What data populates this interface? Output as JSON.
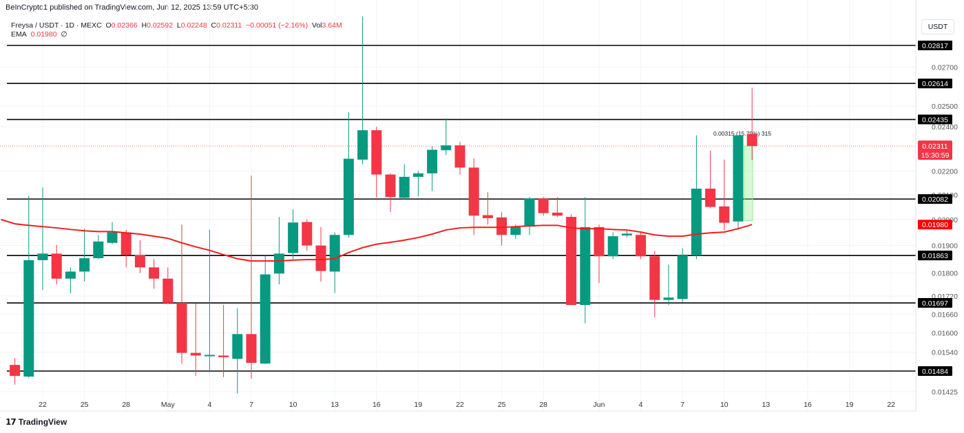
{
  "header": {
    "published": "BeInCrypto1 published on TradingView.com, Jun 12, 2025 13:59 UTC+5:30",
    "symbol": "Freysa / USDT · 1D · MEXC",
    "o_label": "O",
    "o": "0.02366",
    "h_label": "H",
    "h": "0.02592",
    "l_label": "L",
    "l": "0.02248",
    "c_label": "C",
    "c": "0.02311",
    "change": "−0.00051 (−2.16%)",
    "vol_label": "Vol",
    "vol": "3.64M",
    "ema_label": "EMA",
    "ema": "0.01980",
    "ema_extra": "∅"
  },
  "axis_unit": "USDT",
  "footer": {
    "brand": "TradingView",
    "logo_icon": "tradingview-logo-icon"
  },
  "colors": {
    "up": "#089981",
    "down": "#f23645",
    "ema": "#f21c1c",
    "level": "#000000",
    "measure": "#90ee90"
  },
  "chart_data": {
    "type": "candlestick",
    "scale": "log",
    "grid": true,
    "ylim": [
      0.0139,
      0.03
    ],
    "x_ticks": [
      {
        "date": "2025-04-22",
        "label": "22"
      },
      {
        "date": "2025-04-25",
        "label": "25"
      },
      {
        "date": "2025-04-28",
        "label": "28"
      },
      {
        "date": "2025-05-01",
        "label": "May"
      },
      {
        "date": "2025-05-04",
        "label": "4"
      },
      {
        "date": "2025-05-07",
        "label": "7"
      },
      {
        "date": "2025-05-10",
        "label": "10"
      },
      {
        "date": "2025-05-13",
        "label": "13"
      },
      {
        "date": "2025-05-16",
        "label": "16"
      },
      {
        "date": "2025-05-19",
        "label": "19"
      },
      {
        "date": "2025-05-22",
        "label": "22"
      },
      {
        "date": "2025-05-25",
        "label": "25"
      },
      {
        "date": "2025-05-28",
        "label": "28"
      },
      {
        "date": "2025-06-01",
        "label": "Jun"
      },
      {
        "date": "2025-06-04",
        "label": "4"
      },
      {
        "date": "2025-06-07",
        "label": "7"
      },
      {
        "date": "2025-06-10",
        "label": "10"
      },
      {
        "date": "2025-06-13",
        "label": "13"
      },
      {
        "date": "2025-06-16",
        "label": "16"
      },
      {
        "date": "2025-06-19",
        "label": "19"
      },
      {
        "date": "2025-06-22",
        "label": "22"
      }
    ],
    "y_ticks": [
      "0.02700",
      "0.02500",
      "0.02400",
      "0.02200",
      "0.02100",
      "0.02000",
      "0.01900",
      "0.01800",
      "0.01720",
      "0.01660",
      "0.01600",
      "0.01540",
      "0.01425"
    ],
    "levels": [
      "0.02817",
      "0.02614",
      "0.02435",
      "0.02082",
      "0.01863",
      "0.01697",
      "0.01484"
    ],
    "last_price": {
      "value": "0.02311",
      "countdown": "15:30:59"
    },
    "ema_last": "0.01980",
    "measure": {
      "from": 0.01996,
      "to": 0.02311,
      "label": "0.00315 (15.79%) 315",
      "date": "2025-06-11"
    },
    "candles": [
      [
        "2025-04-20",
        0.01502,
        0.01522,
        0.01445,
        0.0147
      ],
      [
        "2025-04-21",
        0.01468,
        0.02095,
        0.01465,
        0.01846
      ],
      [
        "2025-04-22",
        0.01846,
        0.0213,
        0.0174,
        0.0187
      ],
      [
        "2025-04-23",
        0.0187,
        0.01902,
        0.0176,
        0.0178
      ],
      [
        "2025-04-24",
        0.0178,
        0.0182,
        0.0173,
        0.01805
      ],
      [
        "2025-04-25",
        0.01805,
        0.01965,
        0.0177,
        0.01853
      ],
      [
        "2025-04-26",
        0.01853,
        0.0194,
        0.0185,
        0.01915
      ],
      [
        "2025-04-27",
        0.0191,
        0.0199,
        0.01905,
        0.0195
      ],
      [
        "2025-04-28",
        0.0195,
        0.0196,
        0.0182,
        0.01865
      ],
      [
        "2025-04-29",
        0.01865,
        0.0192,
        0.018,
        0.0182
      ],
      [
        "2025-04-30",
        0.0182,
        0.0185,
        0.01745,
        0.0178
      ],
      [
        "2025-05-01",
        0.0178,
        0.0182,
        0.01695,
        0.01697
      ],
      [
        "2025-05-02",
        0.01697,
        0.0198,
        0.01505,
        0.01538
      ],
      [
        "2025-05-03",
        0.01538,
        0.01695,
        0.0147,
        0.0153
      ],
      [
        "2025-05-04",
        0.01528,
        0.0196,
        0.0148,
        0.01532
      ],
      [
        "2025-05-05",
        0.0153,
        0.0169,
        0.01466,
        0.01525
      ],
      [
        "2025-05-06",
        0.0152,
        0.0168,
        0.0142,
        0.01596
      ],
      [
        "2025-05-07",
        0.01596,
        0.0218,
        0.01462,
        0.01508
      ],
      [
        "2025-05-08",
        0.01506,
        0.01862,
        0.01504,
        0.01795
      ],
      [
        "2025-05-09",
        0.01798,
        0.0201,
        0.0176,
        0.0187
      ],
      [
        "2025-05-10",
        0.01872,
        0.0204,
        0.0185,
        0.01988
      ],
      [
        "2025-05-11",
        0.0199,
        0.02,
        0.0188,
        0.019
      ],
      [
        "2025-05-12",
        0.019,
        0.0197,
        0.0177,
        0.01807
      ],
      [
        "2025-05-13",
        0.01805,
        0.0195,
        0.0173,
        0.0194
      ],
      [
        "2025-05-14",
        0.0194,
        0.0247,
        0.0193,
        0.02254
      ],
      [
        "2025-05-15",
        0.0225,
        0.02982,
        0.0223,
        0.02384
      ],
      [
        "2025-05-16",
        0.02384,
        0.024,
        0.02088,
        0.02185
      ],
      [
        "2025-05-17",
        0.02185,
        0.0219,
        0.0203,
        0.0209
      ],
      [
        "2025-05-18",
        0.02087,
        0.0223,
        0.0208,
        0.02175
      ],
      [
        "2025-05-19",
        0.02175,
        0.022,
        0.02093,
        0.0219
      ],
      [
        "2025-05-20",
        0.0219,
        0.0231,
        0.02115,
        0.02294
      ],
      [
        "2025-05-21",
        0.02292,
        0.0244,
        0.0227,
        0.02314
      ],
      [
        "2025-05-22",
        0.02314,
        0.0233,
        0.02185,
        0.02215
      ],
      [
        "2025-05-23",
        0.02215,
        0.02255,
        0.0194,
        0.02015
      ],
      [
        "2025-05-24",
        0.02017,
        0.0211,
        0.0198,
        0.02005
      ],
      [
        "2025-05-25",
        0.02008,
        0.0203,
        0.019,
        0.0194
      ],
      [
        "2025-05-26",
        0.0194,
        0.0198,
        0.01925,
        0.0197
      ],
      [
        "2025-05-27",
        0.01972,
        0.0209,
        0.0194,
        0.02085
      ],
      [
        "2025-05-28",
        0.02085,
        0.0209,
        0.02015,
        0.02025
      ],
      [
        "2025-05-29",
        0.02027,
        0.0209,
        0.0201,
        0.02015
      ],
      [
        "2025-05-30",
        0.0201,
        0.0202,
        0.0169,
        0.0169
      ],
      [
        "2025-05-31",
        0.0169,
        0.0209,
        0.0163,
        0.0197
      ],
      [
        "2025-06-01",
        0.0197,
        0.0198,
        0.01765,
        0.0186
      ],
      [
        "2025-06-02",
        0.0186,
        0.0195,
        0.0185,
        0.01935
      ],
      [
        "2025-06-03",
        0.01938,
        0.0196,
        0.0193,
        0.01945
      ],
      [
        "2025-06-04",
        0.0194,
        0.0195,
        0.0185,
        0.0186
      ],
      [
        "2025-06-05",
        0.0186,
        0.0188,
        0.0165,
        0.01707
      ],
      [
        "2025-06-06",
        0.01707,
        0.0183,
        0.0169,
        0.01715
      ],
      [
        "2025-06-07",
        0.0171,
        0.0189,
        0.017,
        0.01863
      ],
      [
        "2025-06-08",
        0.01863,
        0.0236,
        0.0185,
        0.02125
      ],
      [
        "2025-06-09",
        0.02125,
        0.0229,
        0.02045,
        0.0205
      ],
      [
        "2025-06-10",
        0.02052,
        0.0225,
        0.01957,
        0.01987
      ],
      [
        "2025-06-11",
        0.01992,
        0.0236,
        0.0196,
        0.0236
      ],
      [
        "2025-06-12",
        0.02366,
        0.02592,
        0.02248,
        0.02311
      ]
    ],
    "ema": [
      [
        "2025-04-19",
        0.02
      ],
      [
        "2025-04-20",
        0.01983
      ],
      [
        "2025-04-21",
        0.01977
      ],
      [
        "2025-04-22",
        0.01972
      ],
      [
        "2025-04-23",
        0.01967
      ],
      [
        "2025-04-24",
        0.01961
      ],
      [
        "2025-04-25",
        0.01956
      ],
      [
        "2025-04-26",
        0.01953
      ],
      [
        "2025-04-27",
        0.01953
      ],
      [
        "2025-04-28",
        0.01948
      ],
      [
        "2025-04-29",
        0.01943
      ],
      [
        "2025-04-30",
        0.01935
      ],
      [
        "2025-05-01",
        0.01927
      ],
      [
        "2025-05-02",
        0.0191
      ],
      [
        "2025-05-03",
        0.01895
      ],
      [
        "2025-05-04",
        0.01882
      ],
      [
        "2025-05-05",
        0.01866
      ],
      [
        "2025-05-06",
        0.01851
      ],
      [
        "2025-05-07",
        0.01843
      ],
      [
        "2025-05-08",
        0.01843
      ],
      [
        "2025-05-09",
        0.01843
      ],
      [
        "2025-05-10",
        0.01846
      ],
      [
        "2025-05-11",
        0.01848
      ],
      [
        "2025-05-12",
        0.01848
      ],
      [
        "2025-05-13",
        0.01851
      ],
      [
        "2025-05-14",
        0.01874
      ],
      [
        "2025-05-15",
        0.01892
      ],
      [
        "2025-05-16",
        0.01905
      ],
      [
        "2025-05-17",
        0.01912
      ],
      [
        "2025-05-18",
        0.0192
      ],
      [
        "2025-05-19",
        0.0193
      ],
      [
        "2025-05-20",
        0.01943
      ],
      [
        "2025-05-21",
        0.01959
      ],
      [
        "2025-05-22",
        0.01967
      ],
      [
        "2025-05-23",
        0.01969
      ],
      [
        "2025-05-24",
        0.01969
      ],
      [
        "2025-05-25",
        0.01969
      ],
      [
        "2025-05-26",
        0.01972
      ],
      [
        "2025-05-27",
        0.01975
      ],
      [
        "2025-05-28",
        0.01977
      ],
      [
        "2025-05-29",
        0.01977
      ],
      [
        "2025-05-30",
        0.01967
      ],
      [
        "2025-05-31",
        0.01964
      ],
      [
        "2025-06-01",
        0.01964
      ],
      [
        "2025-06-02",
        0.01961
      ],
      [
        "2025-06-03",
        0.01959
      ],
      [
        "2025-06-04",
        0.01951
      ],
      [
        "2025-06-05",
        0.0194
      ],
      [
        "2025-06-06",
        0.01935
      ],
      [
        "2025-06-07",
        0.01935
      ],
      [
        "2025-06-08",
        0.01943
      ],
      [
        "2025-06-09",
        0.01948
      ],
      [
        "2025-06-10",
        0.01951
      ],
      [
        "2025-06-11",
        0.01964
      ],
      [
        "2025-06-12",
        0.0198
      ]
    ]
  }
}
